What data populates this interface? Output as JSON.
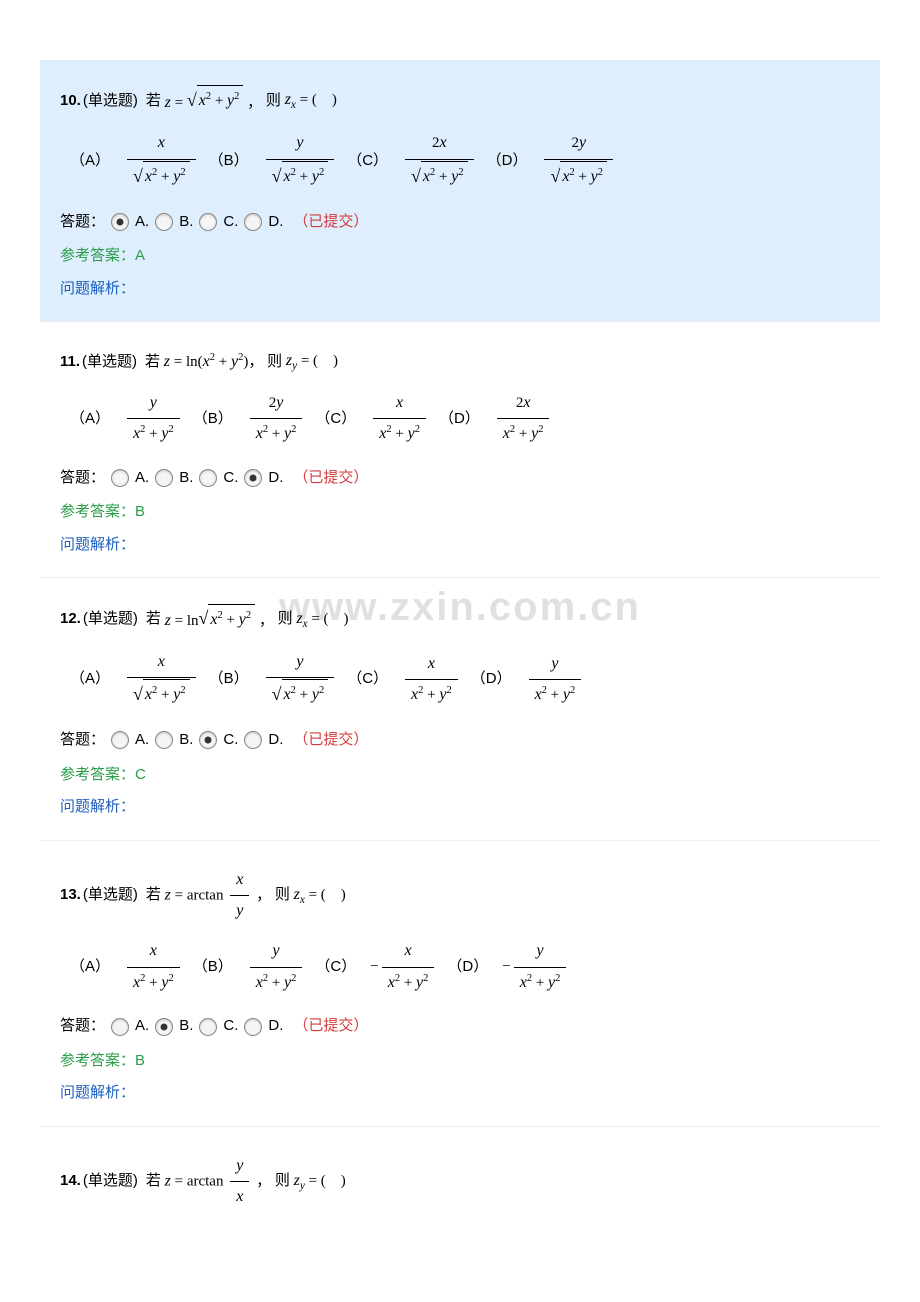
{
  "colors": {
    "highlight_bg": "#dfeefc",
    "submitted": "#d43c3c",
    "ref": "#2a9c4a",
    "analysis": "#1a5ec0"
  },
  "watermark": "www.zxin.com.cn",
  "labels": {
    "qtype": "(单选题)",
    "ruo": "若",
    "ze": "则",
    "dati": "答题：",
    "submitted": "（已提交）",
    "ref_prefix": "参考答案：",
    "analysis": "问题解析：",
    "opt_A": "（A）",
    "opt_B": "（B）",
    "opt_C": "（C）",
    "opt_D": "（D）",
    "A": "A.",
    "B": "B.",
    "C": "C.",
    "D": "D."
  },
  "questions": [
    {
      "num": "10.",
      "highlight": true,
      "selected": "A",
      "ref": "A",
      "stem_lhs": "z = √(x² + y²)",
      "stem_rhs": "zₓ = (    )",
      "opts": [
        "x / √(x² + y²)",
        "y / √(x² + y²)",
        "2x / √(x² + y²)",
        "2y / √(x² + y²)"
      ]
    },
    {
      "num": "11.",
      "highlight": false,
      "selected": "D",
      "ref": "B",
      "stem_lhs": "z = ln(x² + y²)",
      "stem_rhs": "z_y = (    )",
      "opts": [
        "y / (x² + y²)",
        "2y / (x² + y²)",
        "x / (x² + y²)",
        "2x / (x² + y²)"
      ]
    },
    {
      "num": "12.",
      "highlight": false,
      "selected": "C",
      "ref": "C",
      "stem_lhs": "z = ln√(x² + y²)",
      "stem_rhs": "zₓ = (    )",
      "opts": [
        "x / √(x² + y²)",
        "y / √(x² + y²)",
        "x / (x² + y²)",
        "y / (x² + y²)"
      ]
    },
    {
      "num": "13.",
      "highlight": false,
      "selected": "B",
      "ref": "B",
      "stem_lhs": "z = arctan(x/y)",
      "stem_rhs": "zₓ = (    )",
      "opts": [
        "x / (x² + y²)",
        "y / (x² + y²)",
        "− x / (x² + y²)",
        "− y / (x² + y²)"
      ]
    },
    {
      "num": "14.",
      "highlight": false,
      "partial": true,
      "stem_lhs": "z = arctan(y/x)",
      "stem_rhs": "z_y = (    )"
    }
  ]
}
